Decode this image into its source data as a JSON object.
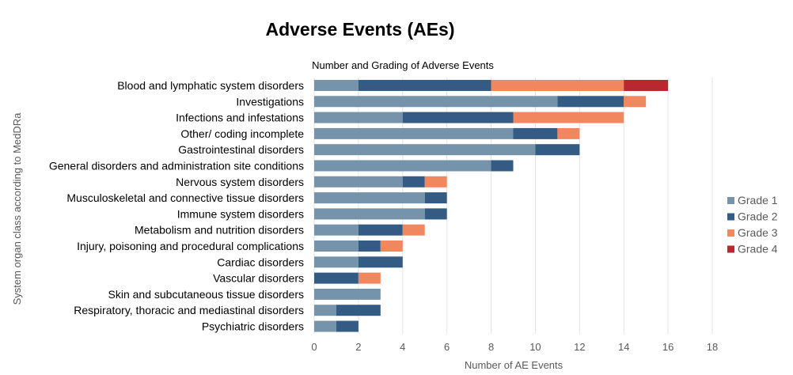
{
  "page_title": "Adverse Events (AEs)",
  "chart_data": {
    "type": "bar",
    "orientation": "horizontal",
    "stacked": true,
    "title": "Number and Grading of Adverse Events",
    "xlabel": "Number of AE Events",
    "ylabel": "System organ class according to MedDRa",
    "xlim": [
      0,
      18
    ],
    "xticks": [
      0,
      2,
      4,
      6,
      8,
      10,
      12,
      14,
      16,
      18
    ],
    "grid": true,
    "legend_position": "right",
    "categories": [
      "Blood and lymphatic system disorders",
      "Investigations",
      "Infections and infestations",
      "Other/ coding incomplete",
      "Gastrointestinal disorders",
      "General disorders and administration site conditions",
      "Nervous system disorders",
      "Musculoskeletal and connective tissue disorders",
      "Immune system disorders",
      "Metabolism and nutrition disorders",
      "Injury, poisoning and procedural complications",
      "Cardiac disorders",
      "Vascular disorders",
      "Skin and subcutaneous tissue disorders",
      "Respiratory, thoracic and mediastinal disorders",
      "Psychiatric disorders"
    ],
    "series": [
      {
        "name": "Grade 1",
        "color": "#7593ab",
        "values": [
          2,
          11,
          4,
          9,
          10,
          8,
          4,
          5,
          5,
          2,
          2,
          2,
          0,
          3,
          1,
          1
        ]
      },
      {
        "name": "Grade 2",
        "color": "#335b83",
        "values": [
          6,
          3,
          5,
          2,
          2,
          1,
          1,
          1,
          1,
          2,
          1,
          2,
          2,
          0,
          2,
          1
        ]
      },
      {
        "name": "Grade 3",
        "color": "#f0875f",
        "values": [
          6,
          1,
          5,
          1,
          0,
          0,
          1,
          0,
          0,
          1,
          1,
          0,
          1,
          0,
          0,
          0
        ]
      },
      {
        "name": "Grade 4",
        "color": "#b8282e",
        "values": [
          2,
          0,
          0,
          0,
          0,
          0,
          0,
          0,
          0,
          0,
          0,
          0,
          0,
          0,
          0,
          0
        ]
      }
    ]
  }
}
